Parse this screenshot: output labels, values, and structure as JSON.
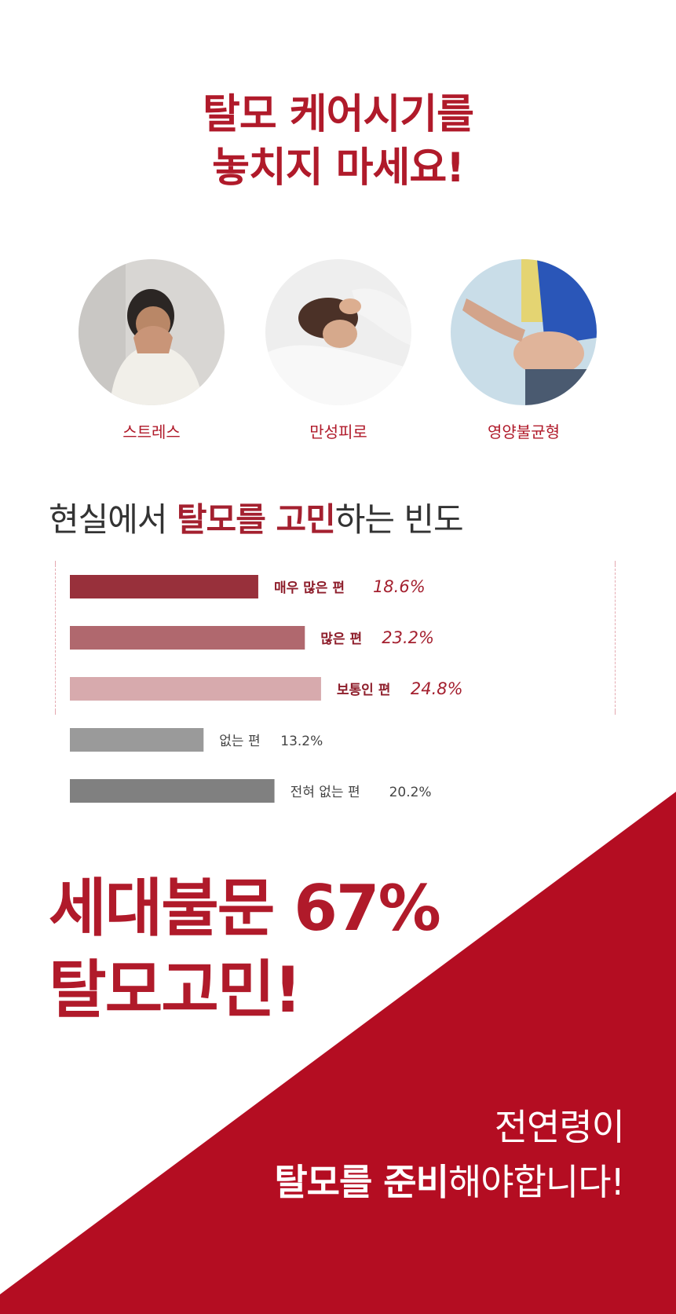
{
  "headline": {
    "line1": "탈모 케어시기를",
    "line2": "놓치지 마세요!"
  },
  "causes": [
    {
      "label": "스트레스",
      "image": "stressed-woman-photo"
    },
    {
      "label": "만성피로",
      "image": "tired-woman-in-bed-photo"
    },
    {
      "label": "영양불균형",
      "image": "belly-pinch-photo"
    }
  ],
  "frequency_title": {
    "part1": "현실에서 ",
    "bold1": "탈모를 고민",
    "part2": "하는 빈도"
  },
  "chart_data": {
    "type": "bar",
    "orientation": "horizontal",
    "unit": "%",
    "categories": [
      "매우 많은 편",
      "많은 편",
      "보통인 편",
      "없는 편",
      "전혀 없는 편"
    ],
    "values": [
      18.6,
      23.2,
      24.8,
      13.2,
      20.2
    ],
    "value_labels": [
      "18.6%",
      "23.2%",
      "24.8%",
      "13.2%",
      "20.2%"
    ],
    "colors": [
      "#98303b",
      "#b0686e",
      "#d7aaad",
      "#9a9a9a",
      "#808080"
    ],
    "label_colors": [
      "#a4202f",
      "#a4202f",
      "#a4202f",
      "#444444",
      "#444444"
    ],
    "highlighted": [
      true,
      true,
      true,
      false,
      false
    ],
    "highlight_group": "dashed-bracket"
  },
  "summary": {
    "line1": "세대불문 67%",
    "line2": "탈모고민!"
  },
  "closing": {
    "line1": "전연령이",
    "bold": "탈모를 준비",
    "rest": "해야합니다!"
  },
  "colors": {
    "brand_red": "#b40d22",
    "text_red": "#b01a2a"
  }
}
